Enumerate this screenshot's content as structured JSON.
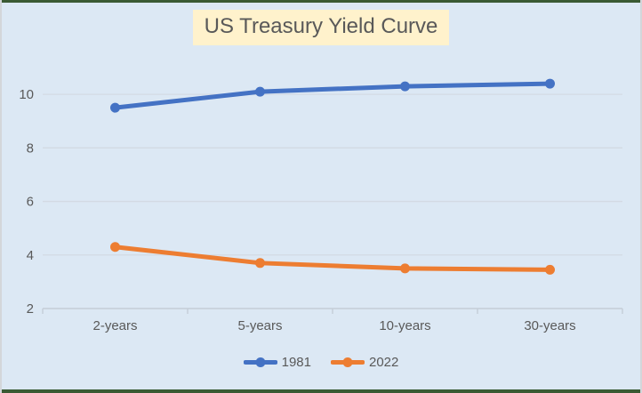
{
  "frame": {
    "background": "#dce8f4",
    "border_green": "#3a5a33",
    "edge_gray": "#d3d6da"
  },
  "chart_data": {
    "type": "line",
    "title": "US Treasury Yield Curve",
    "title_bg": "#fff2cc",
    "text_color": "#595959",
    "categories": [
      "2-years",
      "5-years",
      "10-years",
      "30-years"
    ],
    "series": [
      {
        "name": "1981",
        "color": "#4472C4",
        "values": [
          9.5,
          10.1,
          10.3,
          10.4
        ]
      },
      {
        "name": "2022",
        "color": "#ED7D31",
        "values": [
          4.3,
          3.7,
          3.5,
          3.45
        ]
      }
    ],
    "xlabel": "",
    "ylabel": "",
    "yticks": [
      2,
      4,
      6,
      8,
      10
    ],
    "ylim": [
      2,
      11
    ],
    "grid": true,
    "gridline_color": "#d3dae3",
    "axis_color": "#c4cdd7",
    "legend_position": "bottom",
    "marker": "circle",
    "line_width": 5
  }
}
